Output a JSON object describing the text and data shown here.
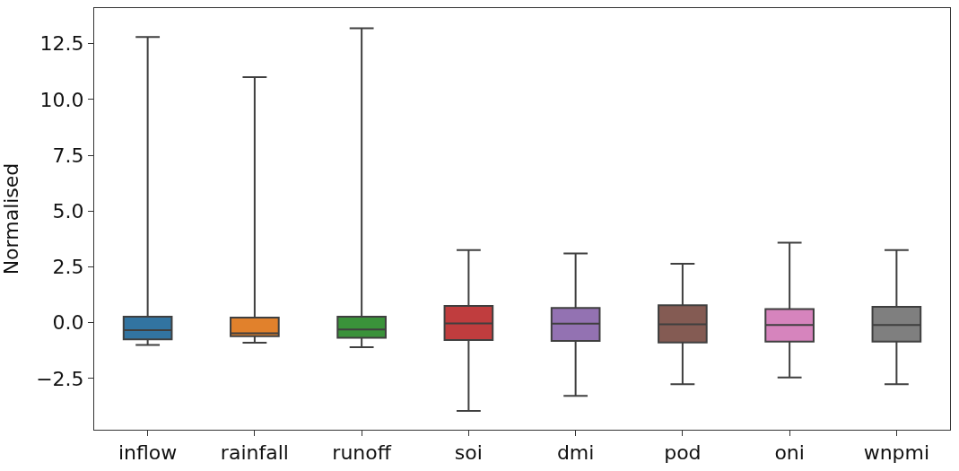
{
  "chart_data": {
    "type": "box",
    "ylabel": "Normalised",
    "categories": [
      "inflow",
      "rainfall",
      "runoff",
      "soi",
      "dmi",
      "pod",
      "oni",
      "wnpmi"
    ],
    "colors": [
      "#3274a1",
      "#e1812c",
      "#3a923a",
      "#c03d3e",
      "#9372b2",
      "#845b53",
      "#d684bd",
      "#7f7f7f"
    ],
    "boxes": [
      {
        "low": -1.0,
        "q1": -0.75,
        "median": -0.34,
        "q3": 0.27,
        "high": 12.8
      },
      {
        "low": -0.9,
        "q1": -0.61,
        "median": -0.48,
        "q3": 0.23,
        "high": 11.0
      },
      {
        "low": -1.1,
        "q1": -0.68,
        "median": -0.31,
        "q3": 0.27,
        "high": 13.2
      },
      {
        "low": -3.96,
        "q1": -0.78,
        "median": -0.03,
        "q3": 0.75,
        "high": 3.25
      },
      {
        "low": -3.28,
        "q1": -0.82,
        "median": -0.04,
        "q3": 0.66,
        "high": 3.1
      },
      {
        "low": -2.76,
        "q1": -0.89,
        "median": -0.07,
        "q3": 0.78,
        "high": 2.64
      },
      {
        "low": -2.46,
        "q1": -0.85,
        "median": -0.11,
        "q3": 0.61,
        "high": 3.58
      },
      {
        "low": -2.76,
        "q1": -0.85,
        "median": -0.11,
        "q3": 0.71,
        "high": 3.25
      }
    ],
    "ylim": [
      -4.8,
      14.1
    ],
    "yticks": [
      {
        "value": -2.5,
        "label": "−2.5"
      },
      {
        "value": 0,
        "label": "0.0"
      },
      {
        "value": 2.5,
        "label": "2.5"
      },
      {
        "value": 5,
        "label": "5.0"
      },
      {
        "value": 7.5,
        "label": "7.5"
      },
      {
        "value": 10,
        "label": "10.0"
      },
      {
        "value": 12.5,
        "label": "12.5"
      }
    ]
  }
}
